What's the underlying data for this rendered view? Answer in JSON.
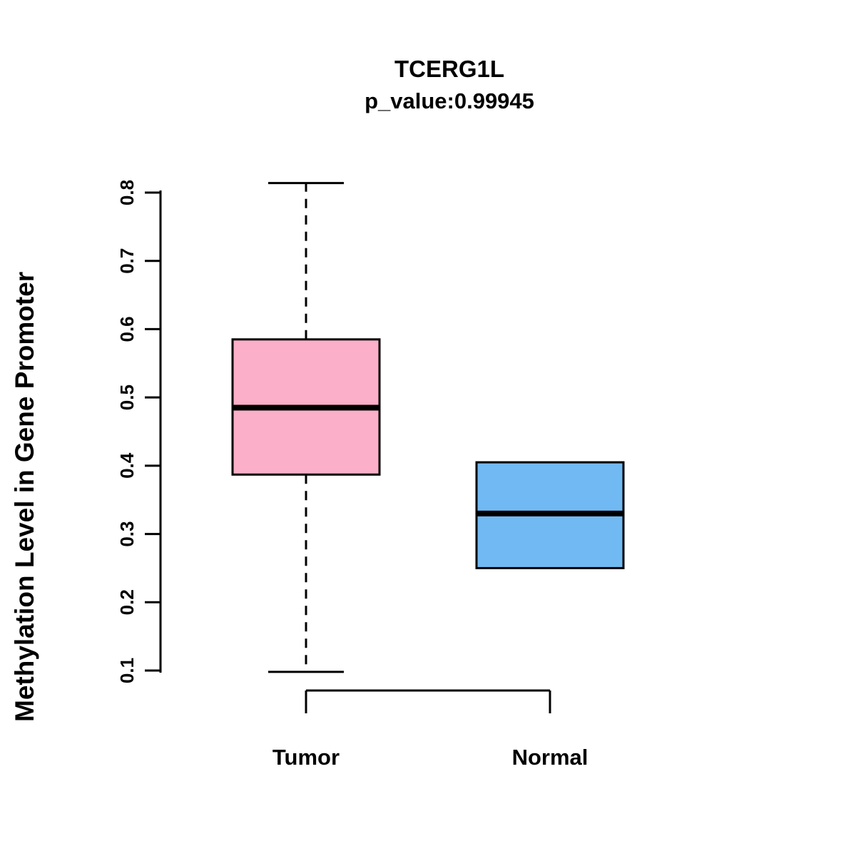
{
  "chart_data": {
    "type": "boxplot",
    "title": "TCERG1L",
    "subtitle": "p_value:0.99945",
    "ylabel": "Methylation Level in Gene Promoter",
    "xlabel": "",
    "ylim": [
      0.1,
      0.8
    ],
    "yticks": [
      0.1,
      0.2,
      0.3,
      0.4,
      0.5,
      0.6,
      0.7,
      0.8
    ],
    "ytick_labels": [
      "0.1",
      "0.2",
      "0.3",
      "0.4",
      "0.5",
      "0.6",
      "0.7",
      "0.8"
    ],
    "grid": false,
    "legend": false,
    "categories": [
      "Tumor",
      "Normal"
    ],
    "series": [
      {
        "name": "Tumor",
        "color": "#FBAFC8",
        "lower_whisker": 0.098,
        "q1": 0.387,
        "median": 0.485,
        "q3": 0.585,
        "upper_whisker": 0.814,
        "whisker_style": "dashed"
      },
      {
        "name": "Normal",
        "color": "#70B9F2",
        "lower_whisker": 0.25,
        "q1": 0.25,
        "median": 0.33,
        "q3": 0.405,
        "upper_whisker": 0.405,
        "whisker_style": "dashed"
      }
    ],
    "colors": {
      "axis": "#000000",
      "text": "#000000",
      "background": "#FFFFFF"
    }
  }
}
